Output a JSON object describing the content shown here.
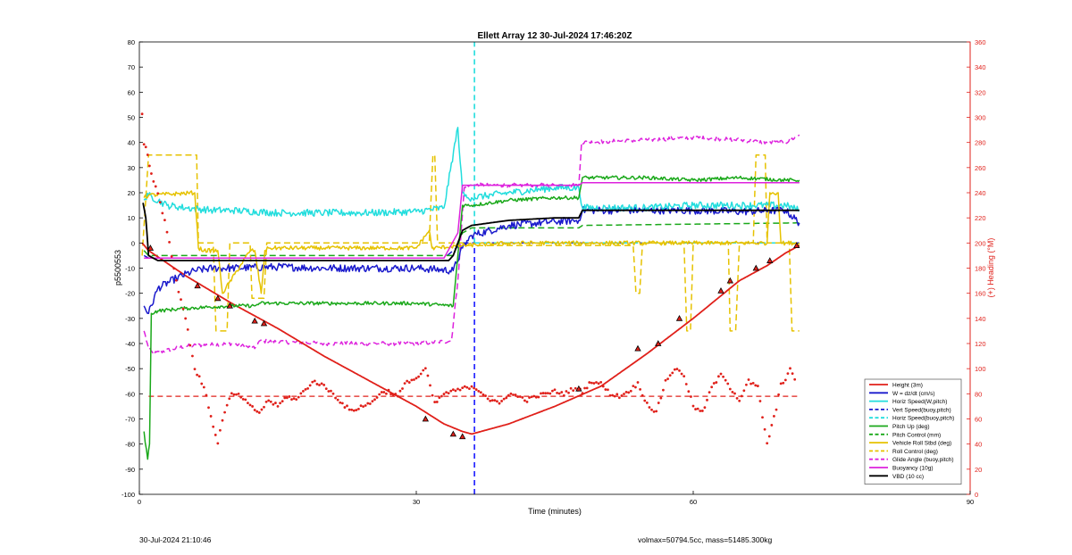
{
  "chart_data": {
    "type": "line",
    "title": "Ellett Array 12 30-Jul-2024 17:46:20Z",
    "xlabel": "Time (minutes)",
    "ylabel": "p5500553",
    "y2label": "(+) Heading (°M)",
    "xlim": [
      0,
      90
    ],
    "ylim": [
      -100,
      80
    ],
    "y2lim": [
      0,
      360
    ],
    "xticks": [
      0,
      30,
      60,
      90
    ],
    "yticks": [
      -100,
      -90,
      -80,
      -70,
      -60,
      -50,
      -40,
      -30,
      -20,
      -10,
      0,
      10,
      20,
      30,
      40,
      50,
      60,
      70,
      80
    ],
    "y2ticks": [
      0,
      20,
      40,
      60,
      80,
      100,
      120,
      140,
      160,
      180,
      200,
      220,
      240,
      260,
      280,
      300,
      320,
      340,
      360
    ],
    "grid": false,
    "legend_position": "bottom-right",
    "vertical_lines": [
      {
        "x": 36.3,
        "color": "#1a1aff",
        "dash": true,
        "ymin": -100,
        "ymax": 0
      },
      {
        "x": 36.3,
        "color": "#22dddd",
        "dash": true,
        "ymin": 0,
        "ymax": 80
      }
    ],
    "series": [
      {
        "name": "Height (3m)",
        "color": "#e0201a",
        "style": "solid",
        "width": 1.8,
        "x": [
          0.3,
          1,
          5,
          10,
          15,
          20,
          25,
          30,
          33,
          35,
          36,
          40,
          45,
          50,
          55,
          60,
          65,
          68,
          70,
          71.5
        ],
        "y": [
          0,
          -3,
          -13,
          -24,
          -34,
          -45,
          -55,
          -65,
          -72,
          -75,
          -76,
          -72,
          -65,
          -57,
          -44,
          -30,
          -15,
          -9,
          -4,
          -1
        ]
      },
      {
        "name": "W = dz/dt (cm/s)",
        "color": "#1a1acc",
        "style": "solid",
        "width": 1.5,
        "noise": 1.5,
        "x": [
          0.5,
          1,
          2,
          4,
          6,
          8,
          10,
          15,
          20,
          25,
          30,
          34,
          35,
          36,
          40,
          45,
          47.6,
          48,
          55,
          60,
          65,
          70,
          71.5
        ],
        "y": [
          -25,
          -28,
          -18,
          -14,
          -11,
          -10,
          -10,
          -9.5,
          -10,
          -10,
          -10,
          -11,
          -2,
          3,
          7,
          8.5,
          9,
          13,
          13,
          13,
          12.5,
          13,
          8
        ]
      },
      {
        "name": "Horiz Speed(W,pitch)",
        "color": "#22dddd",
        "style": "solid",
        "width": 1.5,
        "noise": 1.4,
        "x": [
          0.5,
          1,
          3,
          5,
          8,
          10,
          15,
          20,
          25,
          30,
          33,
          34.5,
          35,
          35.5,
          36,
          40,
          45,
          47.6,
          48,
          55,
          60,
          65,
          70,
          71.5
        ],
        "y": [
          17,
          19,
          15,
          14,
          13,
          13,
          12,
          12,
          12,
          12.5,
          14,
          46,
          20,
          18,
          18,
          20,
          22,
          22,
          14,
          14,
          15,
          15,
          15,
          13
        ]
      },
      {
        "name": "Vert Speed(buoy,pitch)",
        "color": "#1a1acc",
        "style": "dash",
        "width": 1.5,
        "x": [
          0.5,
          1,
          33,
          35,
          36,
          71.5
        ],
        "y": [
          -5,
          -6,
          -6,
          0,
          0,
          0
        ]
      },
      {
        "name": "Horiz Speed(buoy,pitch)",
        "color": "#22dddd",
        "style": "dash",
        "width": 1.5,
        "x": [
          36.3,
          71.5
        ],
        "y": [
          0,
          0
        ]
      },
      {
        "name": "Pitch Up (deg)",
        "color": "#1aa81a",
        "style": "solid",
        "width": 1.5,
        "noise": 0.7,
        "x": [
          0.5,
          0.9,
          1.1,
          1.3,
          2,
          5,
          10,
          12.5,
          13,
          20,
          25,
          30,
          34,
          35,
          36,
          40,
          45,
          47.6,
          48,
          55,
          60,
          65,
          70,
          71.5
        ],
        "y": [
          -75,
          -86,
          -80,
          -28,
          -27,
          -26,
          -25,
          -25,
          -24,
          -24,
          -24,
          -24,
          -25,
          15,
          15,
          17,
          18,
          18,
          26,
          26,
          25,
          26,
          25,
          25
        ]
      },
      {
        "name": "Pitch Control (mm)",
        "color": "#1aa81a",
        "style": "dash",
        "width": 1.5,
        "x": [
          0.5,
          1,
          34,
          35,
          36,
          47.6,
          48,
          71.5
        ],
        "y": [
          -3,
          -5,
          -5,
          4,
          6,
          6,
          7,
          8
        ]
      },
      {
        "name": "Vehicle Roll Stbd (deg)",
        "color": "#e6c200",
        "style": "solid",
        "width": 1.5,
        "noise": 0.8,
        "x": [
          0.5,
          1,
          6,
          6.4,
          7,
          8.5,
          9,
          12,
          12.5,
          13.2,
          13.6,
          14,
          20,
          30,
          31.4,
          31.7,
          32,
          35,
          40,
          45,
          50,
          55,
          60,
          65,
          68,
          68.3,
          69.2,
          69.5,
          70,
          71.5
        ],
        "y": [
          18,
          19,
          20,
          -2,
          -3,
          -3,
          -20,
          -3,
          -3,
          -20,
          -3,
          -2,
          -2,
          -2,
          5,
          -2,
          -2,
          -1,
          0,
          0,
          0,
          0,
          0,
          0,
          0,
          20,
          20,
          0,
          0,
          0
        ]
      },
      {
        "name": "Roll Control (deg)",
        "color": "#e6c200",
        "style": "dash",
        "width": 1.5,
        "x": [
          0.3,
          1,
          1.2,
          6.2,
          6.4,
          8,
          8.3,
          9.5,
          9.8,
          12,
          12.2,
          13.5,
          13.8,
          31.4,
          31.8,
          32,
          32.3,
          35,
          35.3,
          53.5,
          53.8,
          54.2,
          54.5,
          59,
          59.3,
          59.7,
          60,
          63.8,
          64,
          64.6,
          65,
          66.5,
          66.8,
          67.8,
          68,
          70.4,
          70.7,
          71.5
        ],
        "y": [
          -5,
          35,
          35,
          35,
          0,
          0,
          -35,
          -35,
          0,
          0,
          -22,
          -22,
          0,
          0,
          35,
          35,
          0,
          0,
          -1,
          -1,
          -20,
          -20,
          0,
          0,
          -35,
          -35,
          0,
          0,
          -35,
          -35,
          0,
          0,
          35,
          35,
          0,
          0,
          -35,
          -35
        ]
      },
      {
        "name": "Glide Angle (buoy,pitch)",
        "color": "#dd22dd",
        "style": "dash",
        "width": 1.5,
        "noise": 0.8,
        "x": [
          0.5,
          1,
          1.5,
          5,
          10,
          12.5,
          13,
          20,
          25,
          30,
          33.8,
          34.5,
          35.2,
          36,
          40,
          45,
          47.6,
          47.9,
          55,
          60,
          65,
          68,
          70,
          71.5
        ],
        "y": [
          -35,
          -42,
          -44,
          -41,
          -40,
          -42,
          -39,
          -40,
          -40,
          -40,
          -39,
          -15,
          22,
          23,
          23,
          23,
          23,
          40,
          41,
          42,
          41,
          40,
          40,
          43
        ]
      },
      {
        "name": "Buoyancy (10g)",
        "color": "#dd22dd",
        "style": "solid",
        "width": 1.5,
        "x": [
          0.5,
          1,
          33,
          34.5,
          35,
          47.6,
          48,
          71.5
        ],
        "y": [
          -6,
          -6,
          -6,
          4,
          23,
          23,
          24,
          24
        ]
      },
      {
        "name": "VBD (10 cc)",
        "color": "#000000",
        "style": "solid",
        "width": 1.8,
        "x": [
          0.4,
          0.7,
          1,
          2,
          10,
          20,
          30,
          33.5,
          34,
          35,
          36,
          40,
          45,
          47.6,
          48,
          55,
          60,
          65,
          70,
          71.5
        ],
        "y": [
          16,
          10,
          -5,
          -7,
          -7,
          -7,
          -7,
          -7,
          -5,
          5,
          7,
          9,
          10,
          10,
          13,
          13,
          13,
          13,
          13,
          13
        ]
      }
    ],
    "heading": {
      "name": "Heading (°M)",
      "axis": "right",
      "color": "#e0201a",
      "reference_value": 78,
      "x": [
        0.3,
        0.5,
        0.8,
        1,
        1.3,
        2,
        3,
        4,
        5,
        6,
        7,
        8,
        8.5,
        9,
        10,
        11,
        12,
        13,
        14,
        15,
        16,
        17,
        18,
        19,
        20,
        21,
        22,
        23,
        24,
        25,
        26,
        27,
        28,
        29,
        30,
        31,
        32,
        33,
        34,
        35,
        36,
        37,
        38,
        39,
        40,
        41,
        42,
        43,
        44,
        45,
        46,
        47,
        48,
        49,
        50,
        51,
        52,
        53,
        54,
        55,
        56,
        57,
        58,
        59,
        60,
        61,
        62,
        63,
        63.5,
        64,
        65,
        66,
        67,
        67.5,
        68,
        69,
        69.5,
        70,
        70.5,
        71
      ],
      "y": [
        302,
        280,
        274,
        265,
        255,
        240,
        210,
        170,
        140,
        100,
        85,
        55,
        40,
        60,
        80,
        78,
        70,
        65,
        75,
        70,
        78,
        75,
        84,
        90,
        86,
        80,
        72,
        66,
        70,
        72,
        80,
        82,
        78,
        90,
        92,
        100,
        72,
        80,
        82,
        84,
        86,
        82,
        75,
        72,
        80,
        78,
        75,
        78,
        80,
        82,
        80,
        84,
        82,
        90,
        88,
        80,
        78,
        82,
        88,
        72,
        65,
        90,
        100,
        95,
        70,
        65,
        85,
        95,
        92,
        85,
        75,
        90,
        85,
        62,
        40,
        68,
        88,
        92,
        100,
        90
      ]
    },
    "markers": [
      {
        "x": 1.2,
        "y": -2
      },
      {
        "x": 6.3,
        "y": -17
      },
      {
        "x": 8.5,
        "y": -22
      },
      {
        "x": 9.8,
        "y": -25
      },
      {
        "x": 12.5,
        "y": -31
      },
      {
        "x": 13.5,
        "y": -32
      },
      {
        "x": 31,
        "y": -70
      },
      {
        "x": 34,
        "y": -76
      },
      {
        "x": 35,
        "y": -77
      },
      {
        "x": 47.6,
        "y": -58
      },
      {
        "x": 54,
        "y": -42
      },
      {
        "x": 56.2,
        "y": -40
      },
      {
        "x": 58.5,
        "y": -30
      },
      {
        "x": 63,
        "y": -19
      },
      {
        "x": 64,
        "y": -15
      },
      {
        "x": 66.8,
        "y": -10
      },
      {
        "x": 68.3,
        "y": -7
      },
      {
        "x": 71.2,
        "y": -1
      }
    ]
  },
  "footer": {
    "timestamp": "30-Jul-2024 21:10:46",
    "volmass": "volmax=50794.5cc, mass=51485.300kg"
  }
}
